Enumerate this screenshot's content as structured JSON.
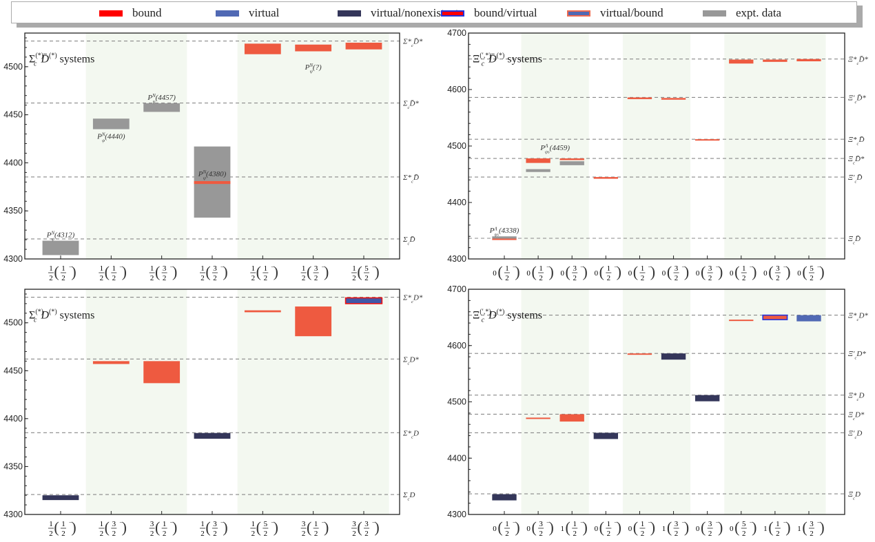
{
  "figure": "Hadronic molecule spectra",
  "legend": {
    "items": [
      {
        "key": "bound",
        "label": "bound",
        "fill": "#ff0000",
        "stroke": "#ff0000"
      },
      {
        "key": "virtual",
        "label": "virtual",
        "fill": "#5069b4",
        "stroke": "#5069b4"
      },
      {
        "key": "virtual_nonexistent",
        "label": "virtual/nonexistent",
        "fill": "#34365a",
        "stroke": "#34365a"
      },
      {
        "key": "bound_virtual",
        "label": "bound/virtual",
        "fill": "#ff0000",
        "stroke": "#2233dd"
      },
      {
        "key": "virtual_bound",
        "label": "virtual/bound",
        "fill": "#5069b4",
        "stroke": "#ee6a4f"
      },
      {
        "key": "expt",
        "label": "expt. data",
        "fill": "#989898",
        "stroke": "#989898"
      }
    ]
  },
  "colors": {
    "bound": "#ee5a40",
    "virtual": "#5069b4",
    "virtual_nonexistent": "#34365a",
    "bound_virtual_fill": "#ee5a40",
    "bound_virtual_stroke": "#2233dd",
    "virtual_bound_fill": "#4058a8",
    "virtual_bound_stroke": "#ee1111",
    "expt": "#989898",
    "band": "#f3f8f0",
    "threshold_line": "#888888"
  },
  "chart_data": [
    {
      "id": "sigma-dbar",
      "type": "bar",
      "title_main": "Σ",
      "title_sub": "c",
      "title_sup": "(*)",
      "title_rest": "D̄",
      "title_rest_sup": "(*)",
      "title_suffix": "systems",
      "ylim": [
        4300,
        4535
      ],
      "yticks": [
        4300,
        4350,
        4400,
        4450,
        4500
      ],
      "categories": [
        {
          "i": "1/2",
          "j": "1/2",
          "p": "−"
        },
        {
          "i": "1/2",
          "j": "1/2",
          "p": "−"
        },
        {
          "i": "1/2",
          "j": "3/2",
          "p": "−"
        },
        {
          "i": "1/2",
          "j": "3/2",
          "p": "−"
        },
        {
          "i": "1/2",
          "j": "1/2",
          "p": "−"
        },
        {
          "i": "1/2",
          "j": "3/2",
          "p": "−"
        },
        {
          "i": "1/2",
          "j": "5/2",
          "p": "−"
        }
      ],
      "bands": [
        [
          1,
          2
        ],
        [
          4,
          6
        ]
      ],
      "thresholds": [
        {
          "label": "Σ_c D̄",
          "value": 4320.8
        },
        {
          "label": "Σ*_c D̄",
          "value": 4385.3
        },
        {
          "label": "Σ_c D̄*",
          "value": 4462.2
        },
        {
          "label": "Σ*_c D̄*",
          "value": 4526.7
        }
      ],
      "states": [
        {
          "cat": 0,
          "kind": "expt",
          "low": 4304,
          "high": 4319,
          "label": "P_ψ^N(4312)",
          "label_pos": "above"
        },
        {
          "cat": 1,
          "kind": "expt",
          "low": 4435,
          "high": 4446,
          "label": "P_ψ^N(4440)",
          "label_pos": "below"
        },
        {
          "cat": 2,
          "kind": "expt",
          "low": 4453,
          "high": 4462,
          "label": "P_ψ^N(4457)",
          "label_pos": "above"
        },
        {
          "cat": 3,
          "kind": "expt",
          "low": 4343,
          "high": 4417,
          "label": "P_ψ^N(4380)",
          "label_pos": "mid"
        },
        {
          "cat": 3,
          "kind": "bound",
          "low": 4378,
          "high": 4381
        },
        {
          "cat": 4,
          "kind": "bound",
          "low": 4513,
          "high": 4524
        },
        {
          "cat": 5,
          "kind": "bound",
          "low": 4516,
          "high": 4523
        },
        {
          "cat": 6,
          "kind": "bound",
          "low": 4518,
          "high": 4525
        }
      ],
      "annotations": [
        {
          "text": "P_ψ^N(?)",
          "cat": 5,
          "value": 4497
        }
      ]
    },
    {
      "id": "xi-dbar",
      "type": "bar",
      "title_main": "Ξ",
      "title_sub": "c",
      "title_sup": "(′,*)",
      "title_rest": "D̄",
      "title_rest_sup": "(*)",
      "title_suffix": "systems",
      "ylim": [
        4300,
        4700
      ],
      "yticks": [
        4300,
        4400,
        4500,
        4600,
        4700
      ],
      "categories": [
        {
          "i": "0",
          "j": "1/2",
          "p": "−"
        },
        {
          "i": "0",
          "j": "1/2",
          "p": "−"
        },
        {
          "i": "0",
          "j": "3/2",
          "p": "−"
        },
        {
          "i": "0",
          "j": "1/2",
          "p": "−"
        },
        {
          "i": "0",
          "j": "1/2",
          "p": "−"
        },
        {
          "i": "0",
          "j": "3/2",
          "p": "−"
        },
        {
          "i": "0",
          "j": "3/2",
          "p": "−"
        },
        {
          "i": "0",
          "j": "1/2",
          "p": "−"
        },
        {
          "i": "0",
          "j": "3/2",
          "p": "−"
        },
        {
          "i": "0",
          "j": "5/2",
          "p": "−"
        }
      ],
      "bands": [
        [
          1,
          2
        ],
        [
          4,
          5
        ],
        [
          7,
          9
        ]
      ],
      "thresholds": [
        {
          "label": "Ξ_c D̄",
          "value": 4336.6
        },
        {
          "label": "Ξ′_c D̄",
          "value": 4445.0
        },
        {
          "label": "Ξ_c D̄*",
          "value": 4478.0
        },
        {
          "label": "Ξ*_c D̄",
          "value": 4512.0
        },
        {
          "label": "Ξ′_c D̄*",
          "value": 4586.0
        },
        {
          "label": "Ξ*_c D̄*",
          "value": 4654.0
        }
      ],
      "states": [
        {
          "cat": 0,
          "kind": "expt",
          "low": 4336,
          "high": 4340,
          "label": "P_ψs^Λ(4338)",
          "label_pos": "above"
        },
        {
          "cat": 0,
          "kind": "bound",
          "low": 4334,
          "high": 4336
        },
        {
          "cat": 1,
          "kind": "bound",
          "low": 4470,
          "high": 4478,
          "label": "P_ψs^Λ(4459)",
          "label_pos": "above_group"
        },
        {
          "cat": 1,
          "kind": "expt",
          "low": 4454,
          "high": 4459
        },
        {
          "cat": 2,
          "kind": "bound",
          "low": 4475,
          "high": 4478
        },
        {
          "cat": 2,
          "kind": "expt",
          "low": 4466,
          "high": 4473
        },
        {
          "cat": 3,
          "kind": "bound",
          "low": 4442,
          "high": 4445
        },
        {
          "cat": 4,
          "kind": "bound",
          "low": 4583,
          "high": 4586
        },
        {
          "cat": 5,
          "kind": "bound",
          "low": 4582,
          "high": 4585
        },
        {
          "cat": 6,
          "kind": "bound",
          "low": 4510,
          "high": 4512
        },
        {
          "cat": 7,
          "kind": "bound",
          "low": 4646,
          "high": 4653
        },
        {
          "cat": 8,
          "kind": "bound",
          "low": 4649,
          "high": 4653
        },
        {
          "cat": 9,
          "kind": "bound",
          "low": 4650,
          "high": 4654
        }
      ],
      "annotations": []
    },
    {
      "id": "sigma-d",
      "type": "bar",
      "title_main": "Σ",
      "title_sub": "c",
      "title_sup": "(*)",
      "title_rest": "D",
      "title_rest_sup": "(*)",
      "title_suffix": "systems",
      "ylim": [
        4300,
        4535
      ],
      "yticks": [
        4300,
        4350,
        4400,
        4450,
        4500
      ],
      "categories": [
        {
          "i": "1/2",
          "j": "1/2",
          "p": "−"
        },
        {
          "i": "1/2",
          "j": "3/2",
          "p": "−"
        },
        {
          "i": "3/2",
          "j": "1/2",
          "p": "−"
        },
        {
          "i": "1/2",
          "j": "3/2",
          "p": "−"
        },
        {
          "i": "1/2",
          "j": "5/2",
          "p": "−"
        },
        {
          "i": "3/2",
          "j": "1/2",
          "p": "−"
        },
        {
          "i": "3/2",
          "j": "3/2",
          "p": "−"
        }
      ],
      "bands": [
        [
          1,
          2
        ],
        [
          4,
          6
        ]
      ],
      "thresholds": [
        {
          "label": "Σ_c D",
          "value": 4320.8
        },
        {
          "label": "Σ*_c D",
          "value": 4385.3
        },
        {
          "label": "Σ_c D*",
          "value": 4462.2
        },
        {
          "label": "Σ*_c D*",
          "value": 4526.7
        }
      ],
      "states": [
        {
          "cat": 0,
          "kind": "virtual_nonexistent",
          "low": 4315,
          "high": 4320
        },
        {
          "cat": 1,
          "kind": "bound",
          "low": 4457,
          "high": 4460
        },
        {
          "cat": 2,
          "kind": "bound",
          "low": 4437,
          "high": 4460
        },
        {
          "cat": 3,
          "kind": "virtual_nonexistent",
          "low": 4379,
          "high": 4385
        },
        {
          "cat": 4,
          "kind": "bound",
          "low": 4511,
          "high": 4513
        },
        {
          "cat": 5,
          "kind": "bound",
          "low": 4486,
          "high": 4517
        },
        {
          "cat": 6,
          "kind": "virtual_bound",
          "low": 4520,
          "high": 4526
        }
      ],
      "annotations": []
    },
    {
      "id": "xi-d",
      "type": "bar",
      "title_main": "Ξ",
      "title_sub": "c",
      "title_sup": "(′,*)",
      "title_rest": "D",
      "title_rest_sup": "(*)",
      "title_suffix": "systems",
      "ylim": [
        4300,
        4700
      ],
      "yticks": [
        4300,
        4400,
        4500,
        4600,
        4700
      ],
      "categories": [
        {
          "i": "0",
          "j": "1/2",
          "p": "−"
        },
        {
          "i": "0",
          "j": "3/2",
          "p": "−"
        },
        {
          "i": "1",
          "j": "1/2",
          "p": "−"
        },
        {
          "i": "0",
          "j": "1/2",
          "p": "−"
        },
        {
          "i": "0",
          "j": "1/2",
          "p": "−"
        },
        {
          "i": "1",
          "j": "3/2",
          "p": "−"
        },
        {
          "i": "0",
          "j": "3/2",
          "p": "−"
        },
        {
          "i": "0",
          "j": "5/2",
          "p": "−"
        },
        {
          "i": "1",
          "j": "1/2",
          "p": "−"
        },
        {
          "i": "1",
          "j": "3/2",
          "p": "−"
        }
      ],
      "bands": [
        [
          1,
          2
        ],
        [
          4,
          5
        ],
        [
          7,
          9
        ]
      ],
      "thresholds": [
        {
          "label": "Ξ_c D",
          "value": 4336.6
        },
        {
          "label": "Ξ′_c D",
          "value": 4445.0
        },
        {
          "label": "Ξ_c D*",
          "value": 4478.0
        },
        {
          "label": "Ξ*_c D",
          "value": 4512.0
        },
        {
          "label": "Ξ′_c D*",
          "value": 4586.0
        },
        {
          "label": "Ξ*_c D*",
          "value": 4654.0
        }
      ],
      "states": [
        {
          "cat": 0,
          "kind": "virtual_nonexistent",
          "low": 4325,
          "high": 4336
        },
        {
          "cat": 1,
          "kind": "bound",
          "low": 4470,
          "high": 4472
        },
        {
          "cat": 2,
          "kind": "bound",
          "low": 4465,
          "high": 4478
        },
        {
          "cat": 3,
          "kind": "virtual_nonexistent",
          "low": 4434,
          "high": 4445
        },
        {
          "cat": 4,
          "kind": "bound",
          "low": 4584,
          "high": 4586
        },
        {
          "cat": 5,
          "kind": "virtual_nonexistent",
          "low": 4575,
          "high": 4586
        },
        {
          "cat": 6,
          "kind": "virtual_nonexistent",
          "low": 4501,
          "high": 4512
        },
        {
          "cat": 7,
          "kind": "bound",
          "low": 4645,
          "high": 4646
        },
        {
          "cat": 8,
          "kind": "bound_virtual",
          "low": 4646,
          "high": 4654
        },
        {
          "cat": 9,
          "kind": "virtual",
          "low": 4643,
          "high": 4654
        }
      ],
      "annotations": []
    }
  ]
}
